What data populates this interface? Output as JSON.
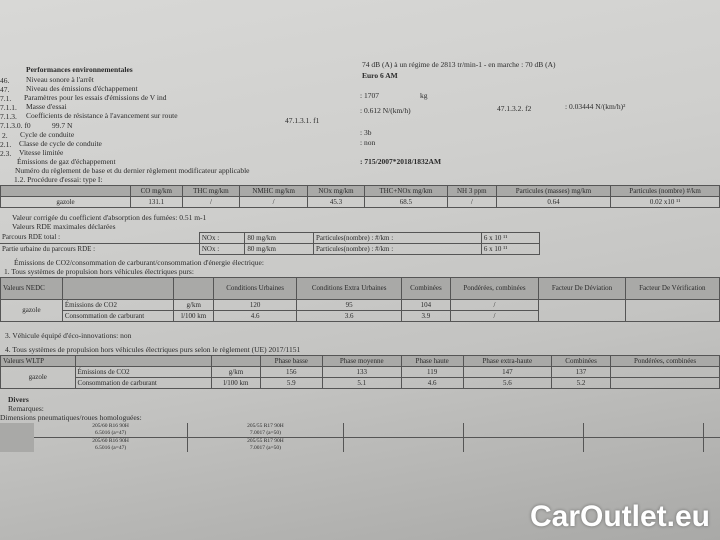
{
  "header": {
    "title": "Performances environnementales"
  },
  "items": [
    {
      "num": "46.",
      "label": "Niveau sonore à l'arrêt",
      "value": "74 dB (A)   à un régime de 2813 tr/min-1 - en marche :   70 dB (A)"
    },
    {
      "num": "47.",
      "label": "Niveau des émissions d'échappement",
      "value": "Euro 6 AM"
    },
    {
      "num": "7.1.",
      "label": "Paramètres pour les essais d'émissions de V ind",
      "value": ""
    },
    {
      "num": "7.1.1.",
      "label": "Masse d'essai",
      "value": ": 1707",
      "unit": "kg"
    },
    {
      "num": "7.1.3.",
      "label": "Coefficients de résistance à l'avancement sur route",
      "f1_label": "47.1.3.1.  f1",
      "f1_value": ": 0.612 N/(km/h)",
      "f2_label": "47.1.3.2.  f2",
      "f2_value": ": 0.03444 N/(km/h)²"
    },
    {
      "num": "7.1.3.0. f0",
      "label": "99.7 N"
    },
    {
      "num": "2.",
      "label": "Cycle de conduite",
      "value": ": 3b"
    },
    {
      "num": "2.1.",
      "label": "Classe de cycle de conduite",
      "value": ": non"
    },
    {
      "num": "2.3.",
      "label": "Vitesse limitée",
      "value": ""
    }
  ],
  "exhaust": {
    "title": "Émissions de gaz d'échappement",
    "regulation_label": "Numéro du règlement de base et du dernier règlement modificateur applicable",
    "regulation_value": ": 715/2007*2018/1832AM",
    "procedure": "1.2. Procédure d'essai: type I:"
  },
  "type1": {
    "headers": [
      "",
      "CO mg/km",
      "THC mg/km",
      "NMHC mg/km",
      "NOx mg/km",
      "THC+NOx mg/km",
      "NH 3 ppm",
      "Particules (masses) mg/km",
      "Particules (nombre) #/km"
    ],
    "row": [
      "gazole",
      "131.1",
      "/",
      "/",
      "45.3",
      "68.5",
      "/",
      "0.64",
      "0.02 x10 ¹¹"
    ]
  },
  "smoke": "Valeur corrigée du coefficient d'absorption des fumées: 0.51 m-1",
  "rde": {
    "title": "Valeurs RDE maximales déclarées",
    "rows": [
      {
        "label": "Parcours RDE total :",
        "nox": "NOx :",
        "nox_val": "80 mg/km",
        "pn": "Particules(nombre) : #/km :",
        "pn_val": "6 x 10 ¹¹"
      },
      {
        "label": "Partie urbaine du parcours RDE   :",
        "nox": "NOx :",
        "nox_val": "80 mg/km",
        "pn": "Particules(nombre) : #/km :",
        "pn_val": "6 x 10 ¹¹"
      }
    ]
  },
  "co2_title": "Émissions de CO2/consommation de carburant/consommation d'énergie électrique:",
  "nedc": {
    "title": "1. Tous systèmes de propulsion hors véhicules électriques purs:",
    "headers": [
      "Valeurs NEDC",
      "",
      "",
      "Conditions Urbaines",
      "Conditions Extra Urbaines",
      "Combinées",
      "Pondérées, combinées",
      "Facteur De Déviation",
      "Facteur De Vérification"
    ],
    "fuel": "gazole",
    "rows": [
      [
        "Émissions de CO2",
        "g/km",
        "120",
        "95",
        "104",
        "/"
      ],
      [
        "Consommation de carburant",
        "l/100 km",
        "4.6",
        "3.6",
        "3.9",
        "/"
      ]
    ]
  },
  "eco": "3. Véhicule équipé d'éco-innovations: non",
  "wltp": {
    "title": "4. Tous systèmes de propulsion hors véhicules électriques purs selon le règlement (UE) 2017/1151",
    "headers": [
      "Valeurs WLTP",
      "",
      "",
      "Phase basse",
      "Phase moyenne",
      "Phase haute",
      "Phase extra-haute",
      "Combinées",
      "Pondérées, combinées"
    ],
    "fuel": "gazole",
    "rows": [
      [
        "Émissions de CO2",
        "g/km",
        "156",
        "133",
        "119",
        "147",
        "137",
        ""
      ],
      [
        "Consommation de carburant",
        "l/100 km",
        "5.9",
        "5.1",
        "4.6",
        "5.6",
        "5.2",
        ""
      ]
    ]
  },
  "divers": {
    "title": "Divers",
    "remarks": "Remarques:",
    "tyres_label": "Dimensions pneumatiques/roues homologuées:",
    "tyres": [
      [
        "205/60 R16 90H",
        "6.5016 (a=47)",
        "205/55 R17 90H",
        "7.0017 (a=50)"
      ],
      [
        "205/60 R16 90H",
        "6.5016 (a=47)",
        "205/55 R17 90H",
        "7.0017 (a=50)"
      ]
    ]
  },
  "watermark": "CarOutlet.eu"
}
